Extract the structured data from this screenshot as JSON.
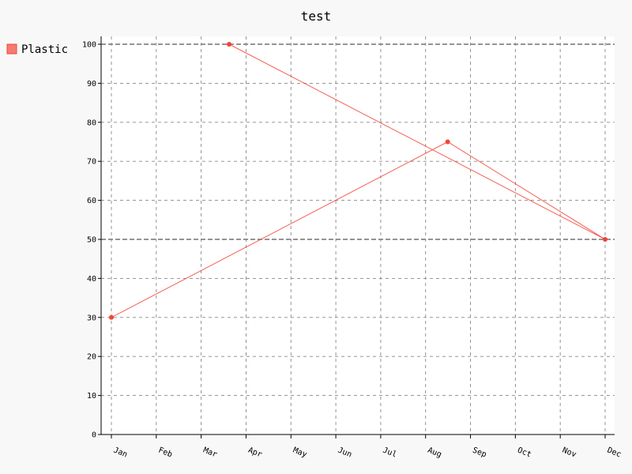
{
  "chart_data": {
    "type": "line",
    "title": "test",
    "xlabel": "",
    "ylabel": "",
    "x_ticks": [
      "Jan",
      "Feb",
      "Mar",
      "Apr",
      "May",
      "Jun",
      "Jul",
      "Aug",
      "Sep",
      "Oct",
      "Nov",
      "Dec"
    ],
    "y_ticks": [
      0,
      10,
      20,
      30,
      40,
      50,
      60,
      70,
      80,
      90,
      100
    ],
    "ylim": [
      0,
      100
    ],
    "grid": true,
    "legend_position": "left",
    "series": [
      {
        "name": "Plastic",
        "color": "#f44336",
        "points": [
          {
            "x": "Jan",
            "y": 30
          },
          {
            "x": "Aug 16",
            "y": 75
          },
          {
            "x": "Dec",
            "y": 50
          },
          {
            "x": "Mar 20",
            "y": 100
          }
        ]
      }
    ]
  }
}
